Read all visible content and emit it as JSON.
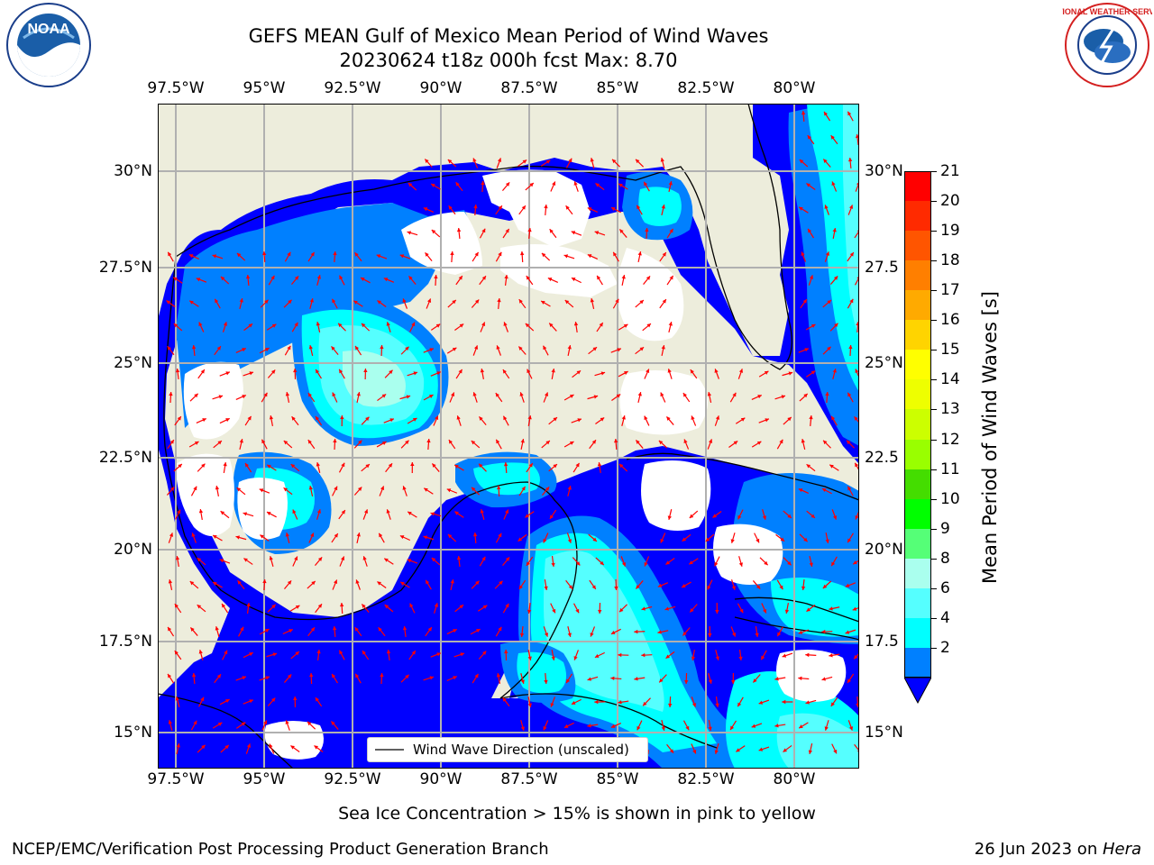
{
  "header": {
    "title": "GEFS MEAN Gulf of Mexico Mean Period of Wind Waves",
    "subtitle": "20230624 t18z 000h fcst   Max: 8.70"
  },
  "logos": {
    "noaa_text": "NOAA",
    "nws_text": "NATIONAL WEATHER SERVICE"
  },
  "map": {
    "lon_ticks": [
      "97.5°W",
      "95°W",
      "92.5°W",
      "90°W",
      "87.5°W",
      "85°W",
      "82.5°W",
      "80°W"
    ],
    "lat_ticks_left": [
      "30°N",
      "27.5°N",
      "25°N",
      "22.5°N",
      "20°N",
      "17.5°N",
      "15°N"
    ],
    "lat_ticks_right": [
      "30°N",
      "27.5",
      "25°N",
      "22.5",
      "20°N",
      "17.5",
      "15°N"
    ],
    "lon_range": [
      -98,
      -78.2
    ],
    "lat_range": [
      14.0,
      31.8
    ],
    "colors": {
      "land": "#ededdc",
      "ocean_blank": "#ffffff",
      "arrow": "#ff0000",
      "grid": "#b0b0b0"
    }
  },
  "colorbar": {
    "title": "Mean Period of Wind Waves [s]",
    "labels": [
      "21",
      "20",
      "19",
      "18",
      "17",
      "16",
      "15",
      "14",
      "13",
      "12",
      "11",
      "10",
      "9",
      "8",
      "6",
      "4",
      "2"
    ],
    "colors": [
      "#ff0000",
      "#ff2a00",
      "#ff5500",
      "#ff7f00",
      "#ffaa00",
      "#ffd400",
      "#ffff00",
      "#eeff00",
      "#ccff00",
      "#99ff00",
      "#44dd00",
      "#00ff00",
      "#55ff77",
      "#aaffee",
      "#55ffff",
      "#00ffff",
      "#0080ff"
    ],
    "extend_color": "#0000ff"
  },
  "legend": {
    "label": "Wind Wave Direction (unscaled)"
  },
  "footer": {
    "note": "Sea Ice Concentration > 15% is shown in pink to yellow",
    "credit": "NCEP/EMC/Verification Post Processing Product Generation Branch",
    "date": "26 Jun 2023 on ",
    "machine": "Hera"
  }
}
